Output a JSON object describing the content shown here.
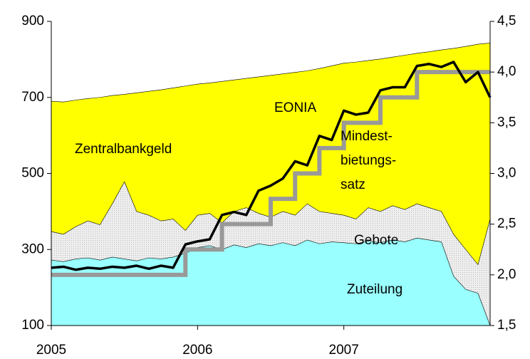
{
  "chart_data": {
    "type": "area",
    "x": [
      2005,
      2005.083,
      2005.167,
      2005.25,
      2005.333,
      2005.417,
      2005.5,
      2005.583,
      2005.667,
      2005.75,
      2005.833,
      2005.917,
      2006,
      2006.083,
      2006.167,
      2006.25,
      2006.333,
      2006.417,
      2006.5,
      2006.583,
      2006.667,
      2006.75,
      2006.833,
      2006.917,
      2007,
      2007.083,
      2007.167,
      2007.25,
      2007.333,
      2007.417,
      2007.5,
      2007.583,
      2007.667,
      2007.75,
      2007.833,
      2007.917,
      2008
    ],
    "xlim": [
      2005,
      2008
    ],
    "xticks": [
      2005,
      2006,
      2007
    ],
    "ylim": [
      100,
      900
    ],
    "yticks": [
      100,
      300,
      500,
      700,
      900
    ],
    "y2lim": [
      1.5,
      4.5
    ],
    "y2ticks": [
      {
        "value": 1.5,
        "label": "1,5"
      },
      {
        "value": 2.0,
        "label": "2,0"
      },
      {
        "value": 2.5,
        "label": "2,5"
      },
      {
        "value": 3.0,
        "label": "3,0"
      },
      {
        "value": 3.5,
        "label": "3,5"
      },
      {
        "value": 4.0,
        "label": "4,0"
      },
      {
        "value": 4.5,
        "label": "4,5"
      }
    ],
    "series": [
      {
        "name": "Zentralbankgeld",
        "kind": "area",
        "color": "#ffff00",
        "values": [
          690,
          688,
          693,
          697,
          700,
          705,
          708,
          712,
          716,
          720,
          725,
          730,
          735,
          738,
          742,
          746,
          750,
          754,
          758,
          762,
          766,
          770,
          776,
          783,
          790,
          793,
          797,
          801,
          806,
          811,
          816,
          820,
          825,
          829,
          834,
          840,
          843
        ]
      },
      {
        "name": "Gebote",
        "kind": "area",
        "color": "#eeeeee",
        "values": [
          347,
          340,
          360,
          375,
          365,
          420,
          478,
          400,
          390,
          375,
          380,
          350,
          390,
          395,
          370,
          400,
          410,
          395,
          385,
          400,
          390,
          420,
          400,
          395,
          390,
          380,
          410,
          400,
          415,
          405,
          420,
          410,
          400,
          340,
          300,
          260,
          380
        ]
      },
      {
        "name": "Zuteilung",
        "kind": "area",
        "color": "#99ffff",
        "values": [
          272,
          268,
          275,
          278,
          272,
          280,
          275,
          270,
          278,
          275,
          280,
          290,
          305,
          310,
          300,
          312,
          305,
          315,
          310,
          318,
          310,
          325,
          315,
          320,
          318,
          315,
          322,
          318,
          325,
          320,
          330,
          325,
          320,
          230,
          195,
          185,
          100
        ]
      },
      {
        "name": [
          "Mindest-",
          "bietungs-",
          "satz"
        ],
        "kind": "step",
        "axis": "y2",
        "color": "#999999",
        "values": [
          2.0,
          2.0,
          2.0,
          2.0,
          2.0,
          2.0,
          2.0,
          2.0,
          2.0,
          2.0,
          2.0,
          2.25,
          2.25,
          2.25,
          2.5,
          2.5,
          2.5,
          2.5,
          2.75,
          2.75,
          3.0,
          3.0,
          3.25,
          3.25,
          3.5,
          3.5,
          3.5,
          3.75,
          3.75,
          3.75,
          4.0,
          4.0,
          4.0,
          4.0,
          4.0,
          4.0,
          4.0
        ]
      },
      {
        "name": "EONIA",
        "kind": "line",
        "axis": "y2",
        "color": "#000000",
        "values": [
          2.07,
          2.08,
          2.05,
          2.07,
          2.06,
          2.08,
          2.07,
          2.09,
          2.06,
          2.09,
          2.07,
          2.3,
          2.33,
          2.35,
          2.59,
          2.62,
          2.59,
          2.83,
          2.88,
          2.95,
          3.12,
          3.08,
          3.37,
          3.33,
          3.62,
          3.58,
          3.6,
          3.82,
          3.85,
          3.85,
          4.06,
          4.08,
          4.05,
          4.1,
          3.9,
          4.0,
          3.75
        ]
      }
    ]
  }
}
